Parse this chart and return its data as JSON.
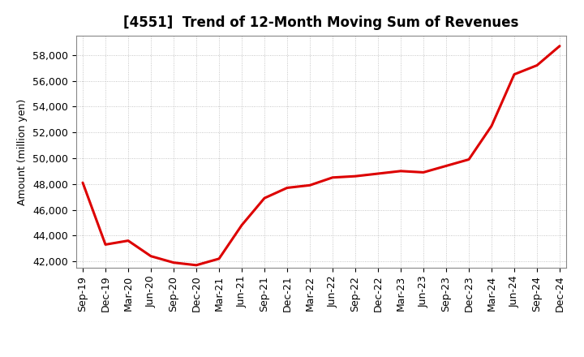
{
  "title": "[4551]  Trend of 12-Month Moving Sum of Revenues",
  "ylabel": "Amount (million yen)",
  "line_color": "#dd0000",
  "background_color": "#ffffff",
  "plot_bg_color": "#ffffff",
  "grid_color": "#999999",
  "ylim": [
    41500,
    59500
  ],
  "yticks": [
    42000,
    44000,
    46000,
    48000,
    50000,
    52000,
    54000,
    56000,
    58000
  ],
  "x_labels": [
    "Sep-19",
    "Dec-19",
    "Mar-20",
    "Jun-20",
    "Sep-20",
    "Dec-20",
    "Mar-21",
    "Jun-21",
    "Sep-21",
    "Dec-21",
    "Mar-22",
    "Jun-22",
    "Sep-22",
    "Dec-22",
    "Mar-23",
    "Jun-23",
    "Sep-23",
    "Dec-23",
    "Mar-24",
    "Jun-24",
    "Sep-24",
    "Dec-24"
  ],
  "values": [
    48100,
    43300,
    43600,
    42400,
    41900,
    41700,
    42200,
    44800,
    46900,
    47700,
    47900,
    48500,
    48600,
    48800,
    49000,
    48900,
    49400,
    49900,
    52500,
    56500,
    57200,
    58700
  ],
  "title_fontsize": 12,
  "ylabel_fontsize": 9,
  "tick_fontsize": 9,
  "linewidth": 2.2
}
